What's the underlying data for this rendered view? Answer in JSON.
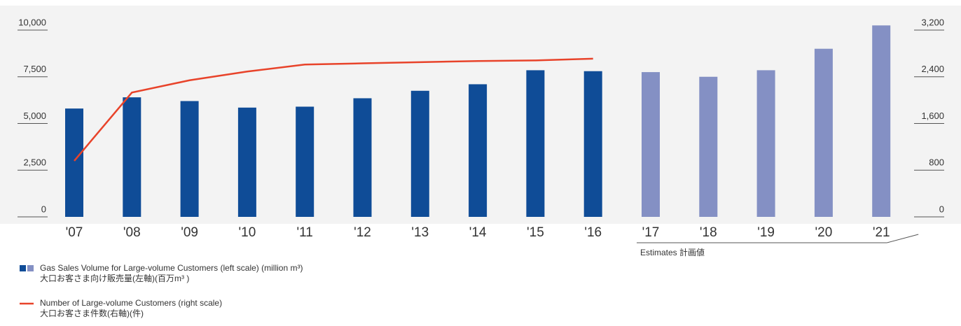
{
  "chart_data": {
    "type": "bar-line",
    "categories": [
      "'07",
      "'08",
      "'09",
      "'10",
      "'11",
      "'12",
      "'13",
      "'14",
      "'15",
      "'16",
      "'17",
      "'18",
      "'19",
      "'20",
      "'21"
    ],
    "series": [
      {
        "name": "Gas Sales Volume for Large-volume Customers (left scale) (million m³)",
        "name_ja": "大口お客さま向け販売量(左軸)(百万m³ )",
        "type": "bar",
        "color": "#0f4c97",
        "estimate_color": "#8490c4",
        "values": [
          5800,
          6400,
          6200,
          5850,
          5900,
          6350,
          6750,
          7100,
          7850,
          7800,
          7750,
          7500,
          7850,
          9000,
          10250
        ]
      },
      {
        "name": "Number of Large-volume Customers (right scale)",
        "name_ja": "大口お客さま件数(右軸)(件)",
        "type": "line",
        "axis": "y2",
        "color": "#e8432a",
        "values": [
          960,
          2130,
          2340,
          2490,
          2610,
          2630,
          2650,
          2670,
          2680,
          2710,
          null,
          null,
          null,
          null,
          null
        ]
      }
    ],
    "estimates": {
      "label": "Estimates 計画値",
      "start": "'17",
      "end": "'21"
    },
    "ylim": [
      0,
      10000
    ],
    "yticks": [
      0,
      {
        "value": 2500,
        "label": "2,500"
      },
      {
        "value": 5000,
        "label": "5,000"
      },
      {
        "value": 7500,
        "label": "7,500"
      },
      {
        "value": 10000,
        "label": "10,000"
      }
    ],
    "y2lim": [
      0,
      3200
    ],
    "y2ticks": [
      0,
      800,
      {
        "value": 1600,
        "label": "1,600"
      },
      {
        "value": 2400,
        "label": "2,400"
      },
      {
        "value": 3200,
        "label": "3,200"
      }
    ]
  }
}
